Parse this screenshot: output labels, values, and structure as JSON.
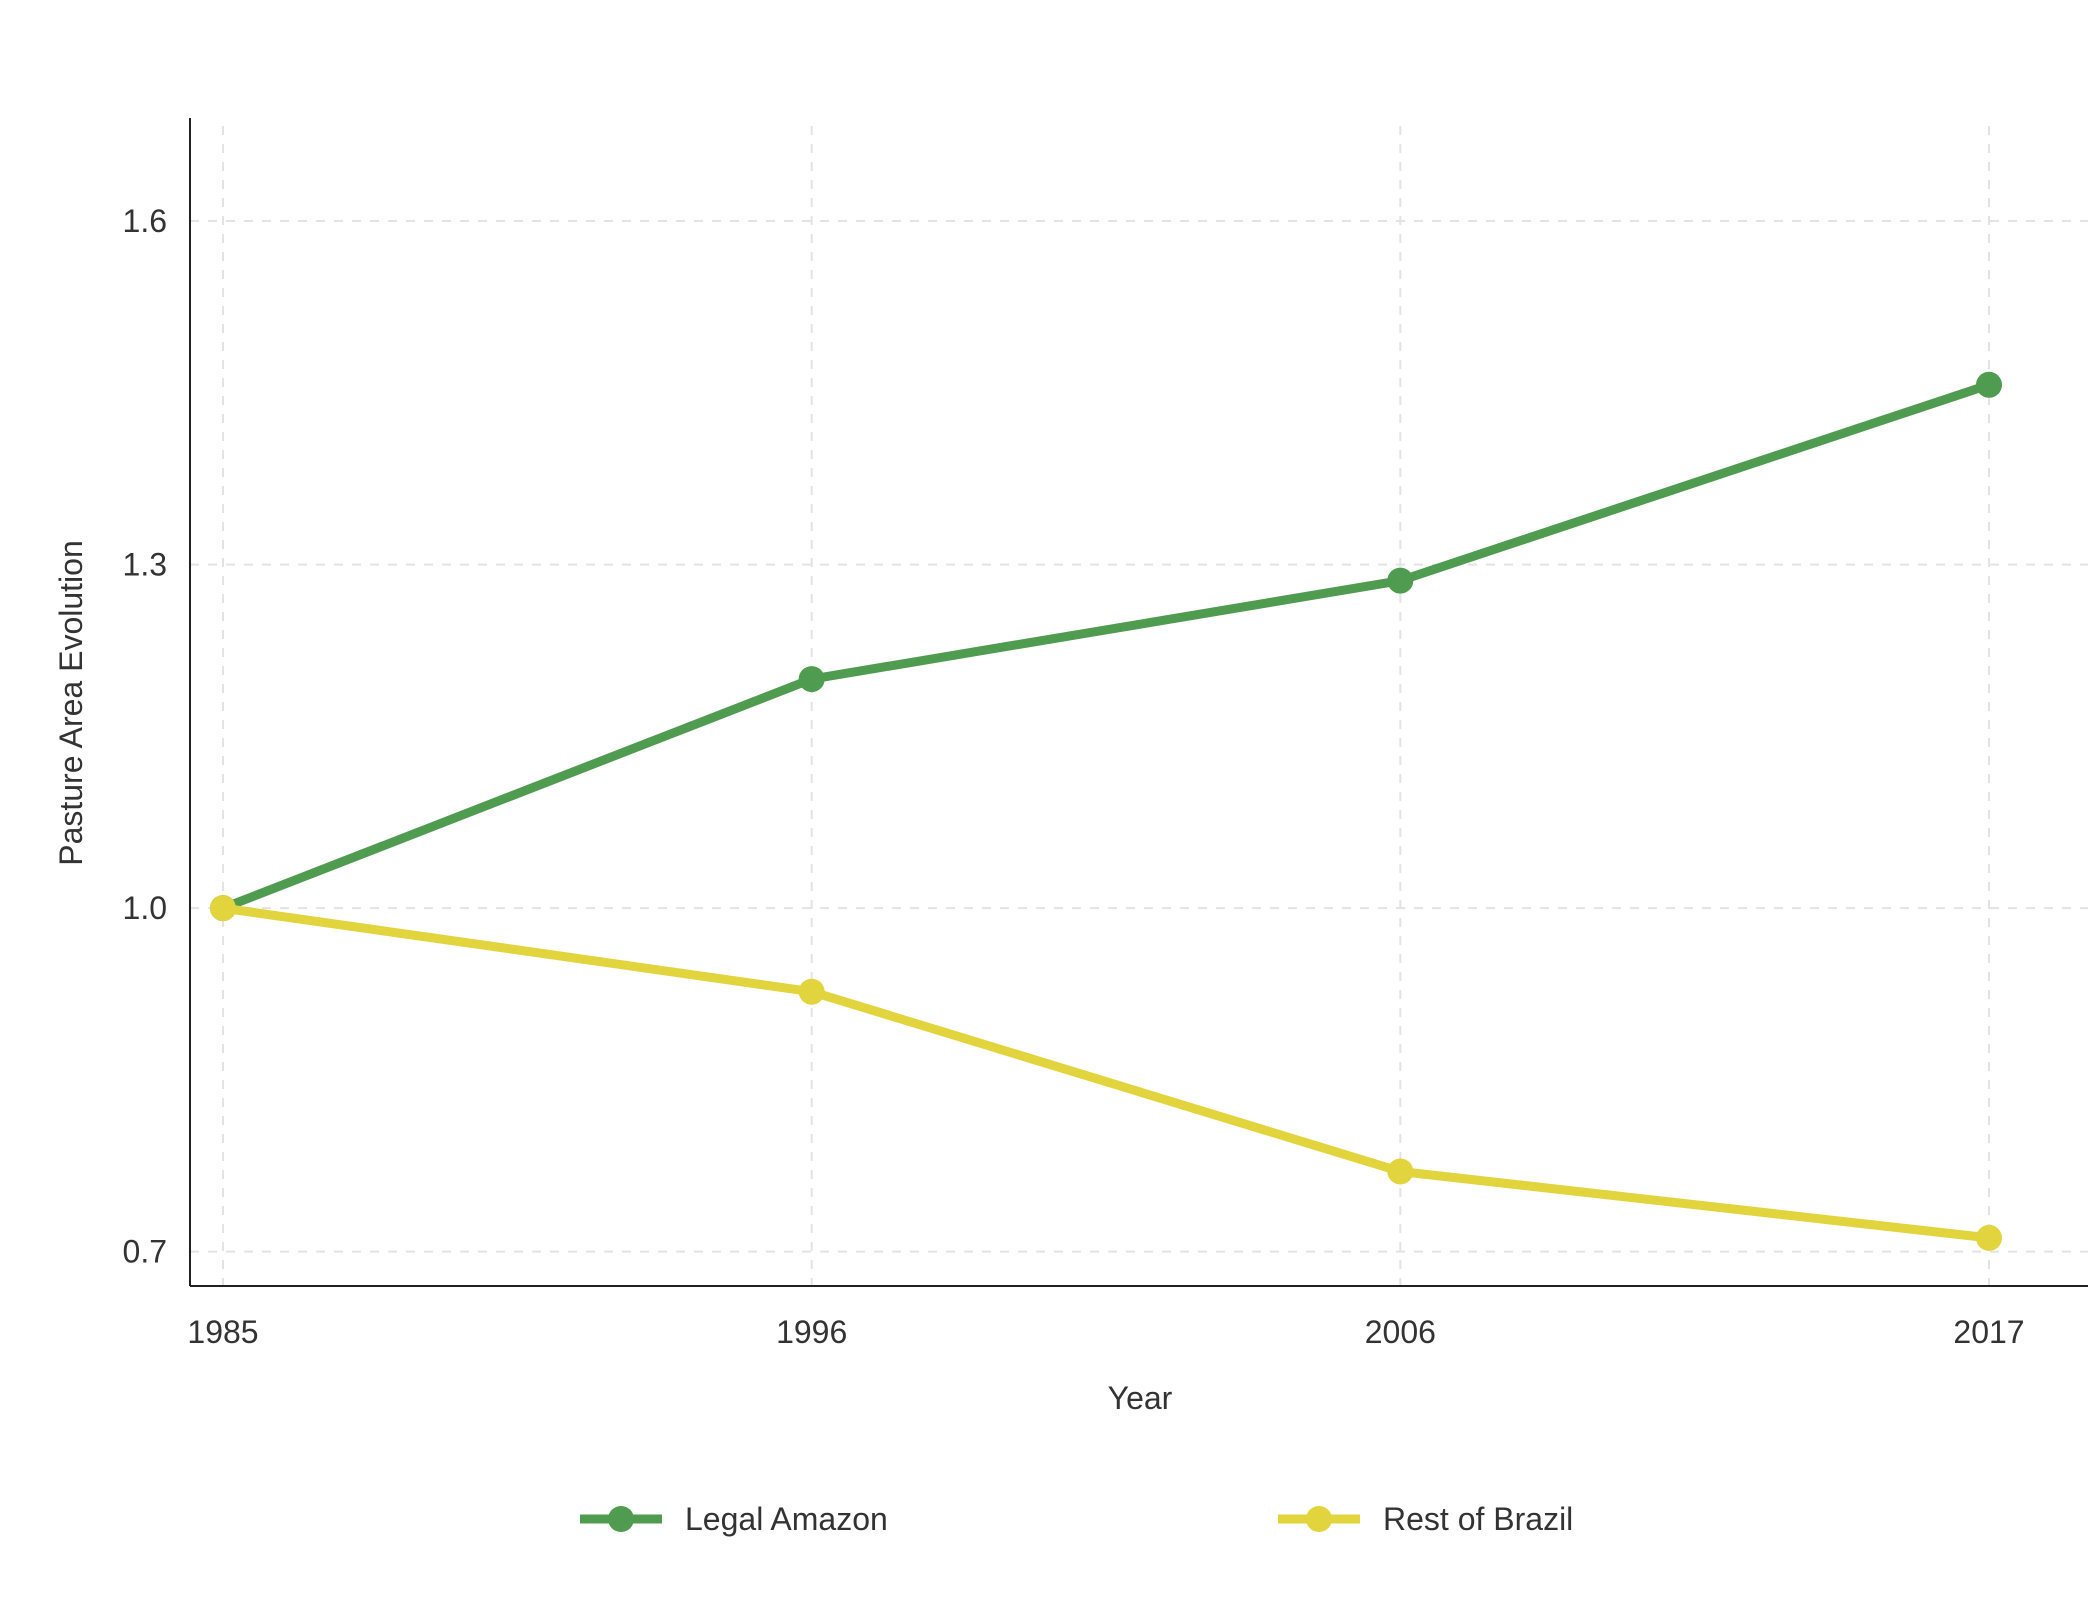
{
  "chart_data": {
    "type": "line",
    "title": "",
    "xlabel": "Year",
    "ylabel": "Pasture Area Evolution",
    "x": [
      "1985",
      "1996",
      "2006",
      "2017"
    ],
    "yticks": [
      "0.7",
      "1.0",
      "1.3",
      "1.6"
    ],
    "ylim": [
      0.67,
      1.69
    ],
    "grid": true,
    "legend_position": "bottom",
    "series": [
      {
        "name": "Legal Amazon",
        "color": "#4f9b4f",
        "values": [
          1.0,
          1.2,
          1.286,
          1.457
        ]
      },
      {
        "name": "Rest of Brazil",
        "color": "#e2d43c",
        "values": [
          1.0,
          0.927,
          0.77,
          0.712
        ]
      }
    ]
  }
}
